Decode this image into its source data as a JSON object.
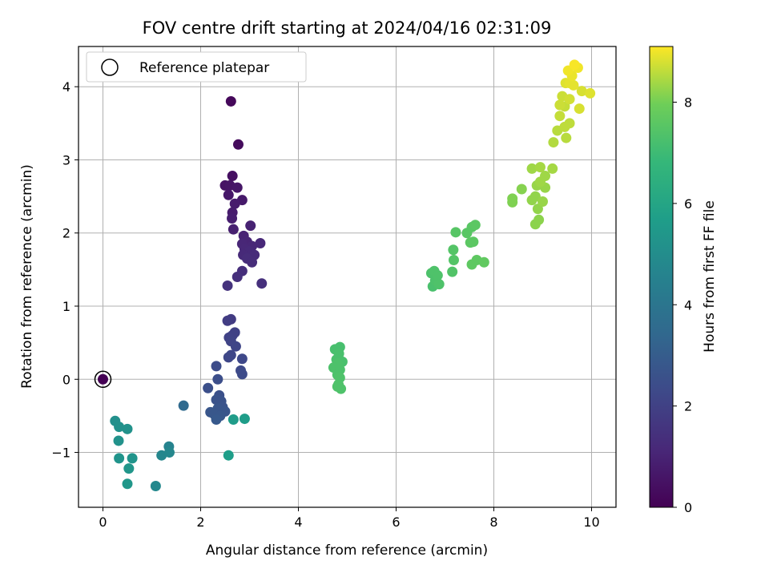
{
  "chart_data": {
    "type": "scatter",
    "title": "FOV centre drift starting at 2024/04/16 02:31:09",
    "xlabel": "Angular distance from reference (arcmin)",
    "ylabel": "Rotation from reference (arcmin)",
    "xlim": [
      -0.5,
      10.5
    ],
    "ylim": [
      -1.75,
      4.55
    ],
    "xticks": [
      0,
      2,
      4,
      6,
      8,
      10
    ],
    "yticks": [
      -1,
      0,
      1,
      2,
      3,
      4
    ],
    "grid": true,
    "legend": {
      "placement": "upper-left",
      "entries": [
        "Reference platepar"
      ]
    },
    "colorbar": {
      "label": "Hours from first FF file",
      "colormap": "viridis",
      "range": [
        0,
        9.1
      ],
      "ticks": [
        0,
        2,
        4,
        6,
        8
      ]
    },
    "reference_point": {
      "x": 0,
      "y": 0
    },
    "series": [
      {
        "points": [
          [
            0.0,
            0.0,
            0.0
          ],
          [
            2.62,
            3.8,
            0.2
          ],
          [
            2.77,
            3.21,
            0.3
          ],
          [
            2.65,
            2.78,
            0.4
          ],
          [
            2.5,
            2.65,
            0.5
          ],
          [
            2.6,
            2.65,
            0.55
          ],
          [
            2.75,
            2.62,
            0.6
          ],
          [
            2.57,
            2.52,
            0.65
          ],
          [
            2.85,
            2.45,
            0.7
          ],
          [
            2.7,
            2.4,
            0.75
          ],
          [
            2.65,
            2.28,
            0.8
          ],
          [
            2.64,
            2.2,
            0.85
          ],
          [
            2.67,
            2.05,
            0.9
          ],
          [
            3.02,
            2.1,
            0.95
          ],
          [
            2.88,
            1.96,
            1.0
          ],
          [
            2.95,
            1.88,
            1.05
          ],
          [
            3.05,
            1.82,
            1.1
          ],
          [
            2.85,
            1.85,
            1.1
          ],
          [
            3.22,
            1.86,
            1.15
          ],
          [
            2.9,
            1.78,
            1.15
          ],
          [
            3.0,
            1.75,
            1.2
          ],
          [
            2.87,
            1.7,
            1.2
          ],
          [
            3.1,
            1.7,
            1.25
          ],
          [
            2.95,
            1.65,
            1.3
          ],
          [
            3.05,
            1.6,
            1.3
          ],
          [
            2.85,
            1.48,
            1.35
          ],
          [
            2.75,
            1.4,
            1.4
          ],
          [
            3.25,
            1.31,
            1.4
          ],
          [
            2.55,
            1.28,
            1.5
          ],
          [
            2.62,
            0.82,
            1.8
          ],
          [
            2.55,
            0.8,
            1.85
          ],
          [
            2.7,
            0.64,
            2.0
          ],
          [
            2.65,
            0.6,
            2.0
          ],
          [
            2.58,
            0.57,
            2.05
          ],
          [
            2.62,
            0.52,
            2.1
          ],
          [
            2.72,
            0.45,
            2.15
          ],
          [
            2.62,
            0.33,
            2.2
          ],
          [
            2.57,
            0.3,
            2.2
          ],
          [
            2.85,
            0.28,
            2.25
          ],
          [
            2.82,
            0.12,
            2.3
          ],
          [
            2.85,
            0.07,
            2.35
          ],
          [
            2.32,
            0.18,
            2.4
          ],
          [
            2.35,
            0.0,
            2.45
          ],
          [
            2.15,
            -0.12,
            2.5
          ],
          [
            2.38,
            -0.22,
            2.55
          ],
          [
            2.32,
            -0.28,
            2.6
          ],
          [
            2.42,
            -0.3,
            2.6
          ],
          [
            2.45,
            -0.38,
            2.65
          ],
          [
            2.35,
            -0.4,
            2.7
          ],
          [
            2.5,
            -0.44,
            2.7
          ],
          [
            2.2,
            -0.45,
            2.75
          ],
          [
            2.28,
            -0.48,
            2.8
          ],
          [
            2.4,
            -0.5,
            2.8
          ],
          [
            2.32,
            -0.55,
            2.85
          ],
          [
            1.65,
            -0.36,
            3.5
          ],
          [
            1.35,
            -0.92,
            4.6
          ],
          [
            1.2,
            -1.04,
            4.7
          ],
          [
            1.36,
            -1.0,
            4.75
          ],
          [
            1.08,
            -1.46,
            4.8
          ],
          [
            0.25,
            -0.57,
            5.1
          ],
          [
            0.33,
            -0.65,
            5.15
          ],
          [
            0.5,
            -0.68,
            5.2
          ],
          [
            0.32,
            -0.84,
            5.2
          ],
          [
            0.33,
            -1.08,
            5.3
          ],
          [
            0.6,
            -1.08,
            5.3
          ],
          [
            0.53,
            -1.22,
            5.35
          ],
          [
            0.5,
            -1.43,
            5.4
          ],
          [
            2.67,
            -0.55,
            5.6
          ],
          [
            2.9,
            -0.54,
            5.65
          ],
          [
            2.57,
            -1.04,
            5.7
          ],
          [
            4.75,
            0.41,
            7.2
          ],
          [
            4.85,
            0.44,
            7.2
          ],
          [
            4.83,
            0.35,
            7.25
          ],
          [
            4.78,
            0.27,
            7.25
          ],
          [
            4.9,
            0.24,
            7.25
          ],
          [
            4.8,
            0.22,
            7.3
          ],
          [
            4.72,
            0.16,
            7.3
          ],
          [
            4.85,
            0.13,
            7.3
          ],
          [
            4.8,
            0.06,
            7.3
          ],
          [
            4.85,
            0.02,
            7.35
          ],
          [
            4.8,
            -0.1,
            7.35
          ],
          [
            4.87,
            -0.13,
            7.35
          ],
          [
            4.82,
            -0.07,
            7.35
          ],
          [
            6.75,
            1.27,
            7.25
          ],
          [
            6.8,
            1.35,
            7.3
          ],
          [
            6.72,
            1.45,
            7.3
          ],
          [
            6.78,
            1.48,
            7.35
          ],
          [
            6.85,
            1.42,
            7.35
          ],
          [
            6.88,
            1.3,
            7.35
          ],
          [
            7.15,
            1.47,
            7.4
          ],
          [
            7.18,
            1.63,
            7.45
          ],
          [
            7.17,
            1.77,
            7.45
          ],
          [
            7.22,
            2.01,
            7.5
          ],
          [
            7.45,
            2.0,
            7.55
          ],
          [
            7.55,
            2.08,
            7.55
          ],
          [
            7.62,
            2.11,
            7.6
          ],
          [
            7.58,
            1.88,
            7.6
          ],
          [
            7.52,
            1.87,
            7.6
          ],
          [
            7.55,
            1.57,
            7.65
          ],
          [
            7.65,
            1.63,
            7.65
          ],
          [
            7.8,
            1.6,
            7.7
          ],
          [
            8.38,
            2.47,
            8.1
          ],
          [
            8.38,
            2.42,
            8.1
          ],
          [
            8.57,
            2.6,
            8.15
          ],
          [
            8.85,
            2.12,
            8.2
          ],
          [
            8.92,
            2.18,
            8.2
          ],
          [
            8.78,
            2.45,
            8.25
          ],
          [
            8.85,
            2.5,
            8.25
          ],
          [
            8.9,
            2.33,
            8.25
          ],
          [
            9.0,
            2.43,
            8.3
          ],
          [
            9.05,
            2.62,
            8.3
          ],
          [
            8.88,
            2.65,
            8.3
          ],
          [
            8.95,
            2.7,
            8.35
          ],
          [
            9.05,
            2.78,
            8.35
          ],
          [
            8.78,
            2.88,
            8.35
          ],
          [
            8.95,
            2.9,
            8.4
          ],
          [
            9.2,
            2.88,
            8.4
          ],
          [
            9.22,
            3.24,
            8.5
          ],
          [
            9.3,
            3.4,
            8.55
          ],
          [
            9.48,
            3.3,
            8.55
          ],
          [
            9.45,
            3.45,
            8.6
          ],
          [
            9.55,
            3.5,
            8.6
          ],
          [
            9.35,
            3.6,
            8.65
          ],
          [
            9.45,
            3.73,
            8.65
          ],
          [
            9.35,
            3.75,
            8.7
          ],
          [
            9.4,
            3.87,
            8.7
          ],
          [
            9.55,
            3.83,
            8.75
          ],
          [
            9.75,
            3.7,
            8.8
          ],
          [
            9.8,
            3.94,
            8.8
          ],
          [
            9.97,
            3.91,
            8.85
          ],
          [
            9.47,
            4.05,
            8.85
          ],
          [
            9.55,
            4.05,
            8.9
          ],
          [
            9.63,
            4.02,
            8.9
          ],
          [
            9.6,
            4.15,
            8.95
          ],
          [
            9.52,
            4.22,
            9.0
          ],
          [
            9.72,
            4.26,
            9.0
          ],
          [
            9.65,
            4.3,
            9.05
          ]
        ]
      }
    ]
  }
}
